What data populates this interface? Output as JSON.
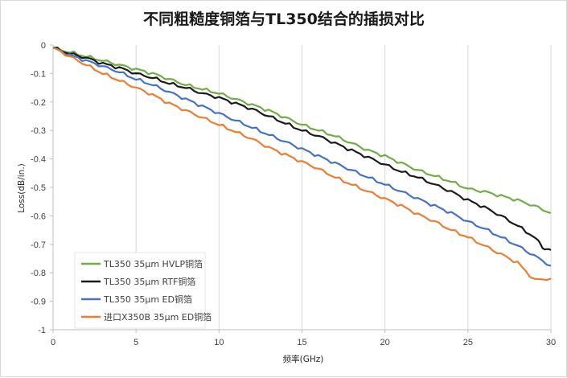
{
  "chart_data": {
    "type": "line",
    "title": "不同粗糙度铜箔与TL350结合的插损对比",
    "xlabel": "频率(GHz)",
    "ylabel": "Loss(dB/in.)",
    "xlim": [
      0,
      30
    ],
    "ylim": [
      -1,
      0
    ],
    "xticks": [
      0,
      5,
      10,
      15,
      20,
      25,
      30
    ],
    "yticks": [
      0,
      -0.1,
      -0.2,
      -0.3,
      -0.4,
      -0.5,
      -0.6,
      -0.7,
      -0.8,
      -0.9,
      -1
    ],
    "grid": "vertical",
    "legend_position": "bottom-left",
    "series": [
      {
        "name": "TL350 35μm HVLP铜箔",
        "color": "#70ad47",
        "x": [
          0,
          1,
          2,
          3,
          4,
          5,
          6,
          7,
          8,
          9,
          10,
          11,
          12,
          13,
          14,
          15,
          16,
          17,
          18,
          19,
          20,
          21,
          22,
          23,
          24,
          25,
          26,
          27,
          28,
          29,
          30
        ],
        "y": [
          -0.01,
          -0.025,
          -0.04,
          -0.055,
          -0.07,
          -0.085,
          -0.1,
          -0.12,
          -0.14,
          -0.155,
          -0.17,
          -0.19,
          -0.21,
          -0.23,
          -0.255,
          -0.28,
          -0.3,
          -0.32,
          -0.345,
          -0.37,
          -0.39,
          -0.415,
          -0.44,
          -0.46,
          -0.48,
          -0.505,
          -0.515,
          -0.53,
          -0.545,
          -0.565,
          -0.59
        ]
      },
      {
        "name": "TL350 35μm RTF铜箔",
        "color": "#1a1a1a",
        "x": [
          0,
          1,
          2,
          3,
          4,
          5,
          6,
          7,
          8,
          9,
          10,
          11,
          12,
          13,
          14,
          15,
          16,
          17,
          18,
          19,
          20,
          21,
          22,
          23,
          24,
          25,
          26,
          27,
          28,
          29,
          29.5,
          30
        ],
        "y": [
          -0.01,
          -0.03,
          -0.045,
          -0.065,
          -0.08,
          -0.1,
          -0.115,
          -0.135,
          -0.15,
          -0.17,
          -0.185,
          -0.205,
          -0.225,
          -0.25,
          -0.275,
          -0.3,
          -0.32,
          -0.345,
          -0.37,
          -0.395,
          -0.42,
          -0.445,
          -0.465,
          -0.49,
          -0.515,
          -0.545,
          -0.57,
          -0.6,
          -0.635,
          -0.675,
          -0.71,
          -0.72
        ]
      },
      {
        "name": "TL350 35μm ED铜箔",
        "color": "#4472c4",
        "x": [
          0,
          1,
          2,
          3,
          4,
          5,
          6,
          7,
          8,
          9,
          10,
          11,
          12,
          13,
          14,
          15,
          16,
          17,
          18,
          19,
          20,
          21,
          22,
          23,
          24,
          25,
          26,
          27,
          28,
          29,
          30
        ],
        "y": [
          -0.01,
          -0.035,
          -0.055,
          -0.075,
          -0.095,
          -0.12,
          -0.14,
          -0.165,
          -0.19,
          -0.215,
          -0.24,
          -0.265,
          -0.29,
          -0.315,
          -0.34,
          -0.365,
          -0.39,
          -0.415,
          -0.44,
          -0.465,
          -0.49,
          -0.515,
          -0.54,
          -0.565,
          -0.59,
          -0.62,
          -0.645,
          -0.675,
          -0.705,
          -0.74,
          -0.775
        ]
      },
      {
        "name": "进口X350B 35μm ED铜箔",
        "color": "#ed7d31",
        "x": [
          0,
          1,
          2,
          3,
          4,
          5,
          6,
          7,
          8,
          9,
          10,
          11,
          12,
          13,
          14,
          15,
          16,
          17,
          18,
          19,
          20,
          21,
          22,
          23,
          24,
          25,
          26,
          27,
          28,
          29,
          30
        ],
        "y": [
          -0.01,
          -0.04,
          -0.07,
          -0.1,
          -0.125,
          -0.15,
          -0.175,
          -0.205,
          -0.23,
          -0.255,
          -0.28,
          -0.305,
          -0.33,
          -0.36,
          -0.385,
          -0.41,
          -0.435,
          -0.465,
          -0.49,
          -0.515,
          -0.54,
          -0.565,
          -0.595,
          -0.62,
          -0.65,
          -0.675,
          -0.705,
          -0.735,
          -0.765,
          -0.825,
          -0.82
        ]
      }
    ]
  }
}
